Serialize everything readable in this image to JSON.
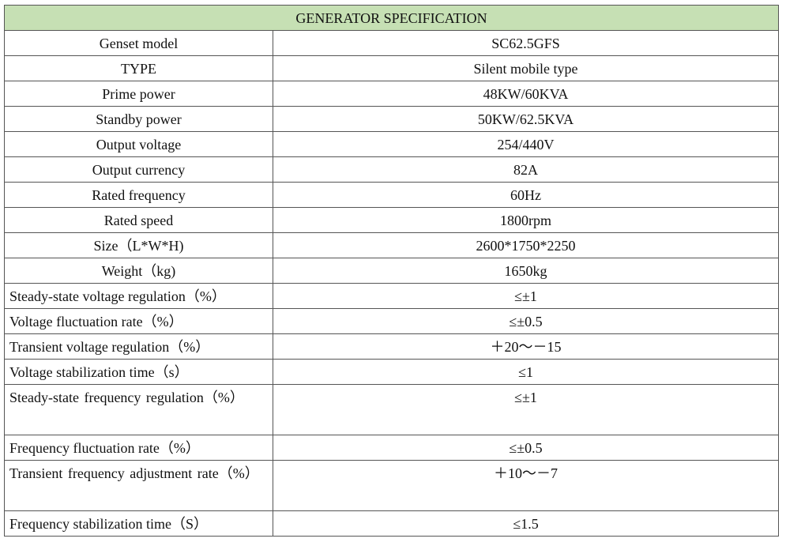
{
  "table": {
    "title": "GENERATOR SPECIFICATION",
    "title_bg": "#c6e0b4",
    "rows": [
      {
        "label": "Genset model",
        "value": "SC62.5GFS"
      },
      {
        "label": "TYPE",
        "value": "Silent mobile type"
      },
      {
        "label": "Prime power",
        "value": "48KW/60KVA"
      },
      {
        "label": "Standby power",
        "value": "50KW/62.5KVA"
      },
      {
        "label": "Output voltage",
        "value": "254/440V"
      },
      {
        "label": "Output currency",
        "value": "82A"
      },
      {
        "label": "Rated frequency",
        "value": "60Hz"
      },
      {
        "label": "Rated speed",
        "value": "1800rpm"
      },
      {
        "label": "Size（L*W*H)",
        "value": "2600*1750*2250"
      },
      {
        "label": "Weight（kg)",
        "value": "1650kg"
      },
      {
        "label": "Steady-state voltage regulation（%）",
        "value": "≤±1"
      },
      {
        "label": "Voltage fluctuation rate（%）",
        "value": "≤±0.5"
      },
      {
        "label": "Transient voltage regulation（%）",
        "value": "＋20～－15"
      },
      {
        "label": "Voltage stabilization time（s）",
        "value": "≤1"
      },
      {
        "label": "Steady-state frequency regulation（%）",
        "value": "≤±1"
      },
      {
        "label": "Frequency fluctuation rate（%）",
        "value": "≤±0.5"
      },
      {
        "label": "Transient frequency adjustment rate（%）",
        "value": "＋10～－7"
      },
      {
        "label": "Frequency stabilization time（S）",
        "value": "≤1.5"
      }
    ]
  }
}
